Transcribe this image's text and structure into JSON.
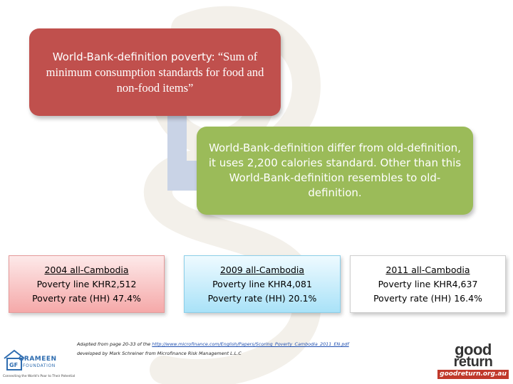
{
  "top_box": {
    "lead": "World-Bank-definition poverty:",
    "quote": " “Sum of minimum consumption standards for food and non-food items”"
  },
  "mid_box": {
    "text": "World-Bank-definition differ from old-definition, it uses 2,200 calories standard. Other than this World-Bank-definition resembles to old-definition."
  },
  "year_boxes": [
    {
      "heading": "2004 all-Cambodia",
      "line": "Poverty line KHR2,512",
      "rate": "Poverty rate (HH) 47.4%"
    },
    {
      "heading": "2009 all-Cambodia",
      "line": "Poverty line KHR4,081",
      "rate": "Poverty rate (HH) 20.1%"
    },
    {
      "heading": "2011 all-Cambodia",
      "line": "Poverty line KHR4,637",
      "rate": "Poverty rate (HH) 16.4%"
    }
  ],
  "footnote": {
    "prefix": "Adapted from page 20-33 of the ",
    "url": "http://www.microfinance.com/English/Papers/Scoring_Poverty_Cambodia_2011_EN.pdf",
    "line2": "developed by Mark Schreiner from Microfinance Risk Management L.L.C"
  },
  "logos": {
    "grameen": {
      "mark": "GF",
      "name": "GRAMEEN",
      "sub": "FOUNDATION",
      "tagline": "Connecting the World's Poor to Their Potential"
    },
    "goodreturn": {
      "word1": "good",
      "word2": "return",
      "site": "goodreturn.org.au"
    }
  },
  "colors": {
    "red_box": "#c0504d",
    "green_box": "#9bbb59",
    "connector": "#c9d3e6",
    "watermark": "#f2efe9"
  }
}
